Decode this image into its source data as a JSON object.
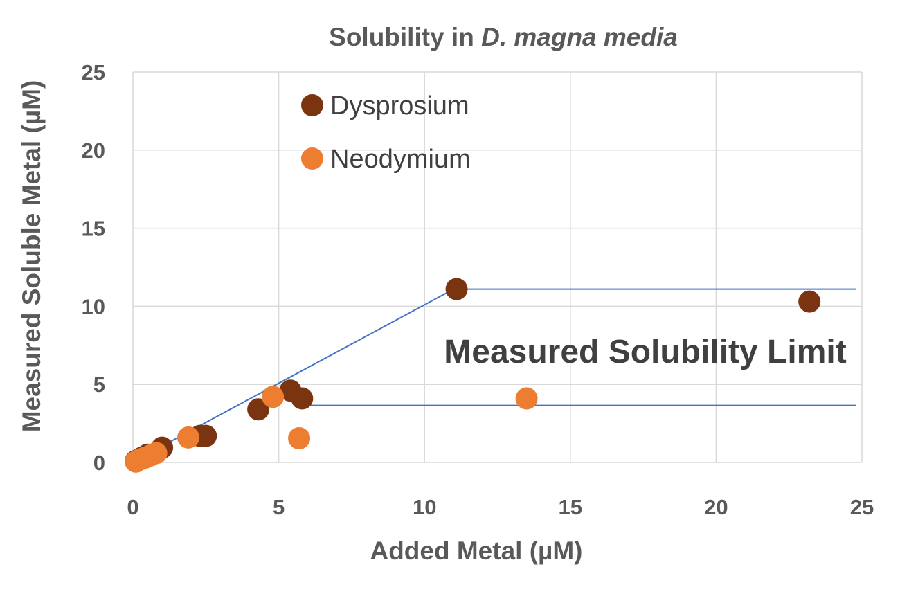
{
  "chart_data": {
    "type": "scatter",
    "title": "Solubility in D. magna media",
    "title_parts": {
      "prefix": "Solubility in ",
      "italic": "D. magna media"
    },
    "xlabel": "Added Metal (µM)",
    "ylabel": "Measured Soluble Metal (µM)",
    "xlim": [
      0,
      25
    ],
    "ylim": [
      0,
      25
    ],
    "x_ticks": [
      "0",
      "5",
      "10",
      "15",
      "20",
      "25"
    ],
    "y_ticks": [
      "0",
      "5",
      "10",
      "15",
      "20",
      "25"
    ],
    "grid": true,
    "legend_position": "top-left",
    "series": [
      {
        "name": "Dysprosium",
        "color": "#7b3410",
        "points": [
          {
            "x": 0.1,
            "y": 0.1
          },
          {
            "x": 0.3,
            "y": 0.3
          },
          {
            "x": 0.5,
            "y": 0.5
          },
          {
            "x": 1.0,
            "y": 0.95
          },
          {
            "x": 2.3,
            "y": 1.7
          },
          {
            "x": 2.5,
            "y": 1.7
          },
          {
            "x": 4.3,
            "y": 3.4
          },
          {
            "x": 5.4,
            "y": 4.6
          },
          {
            "x": 5.8,
            "y": 4.1
          },
          {
            "x": 11.1,
            "y": 11.1
          },
          {
            "x": 23.2,
            "y": 10.3
          }
        ]
      },
      {
        "name": "Neodymium",
        "color": "#ed7d31",
        "points": [
          {
            "x": 0.1,
            "y": 0.05
          },
          {
            "x": 0.25,
            "y": 0.2
          },
          {
            "x": 0.4,
            "y": 0.3
          },
          {
            "x": 0.6,
            "y": 0.45
          },
          {
            "x": 0.8,
            "y": 0.6
          },
          {
            "x": 1.9,
            "y": 1.6
          },
          {
            "x": 4.8,
            "y": 4.2
          },
          {
            "x": 5.7,
            "y": 1.55
          },
          {
            "x": 13.5,
            "y": 4.1
          }
        ]
      }
    ],
    "lines": [
      {
        "color": "#4472c4",
        "points": [
          [
            0.1,
            0.15
          ],
          [
            11.0,
            11.1
          ]
        ]
      },
      {
        "color": "#4472c4",
        "points": [
          [
            11.1,
            11.1
          ],
          [
            24.8,
            11.1
          ]
        ]
      },
      {
        "color": "#4472c4",
        "points": [
          [
            5.6,
            3.65
          ],
          [
            24.8,
            3.65
          ]
        ]
      }
    ],
    "annotation": "Measured Solubility Limit"
  }
}
